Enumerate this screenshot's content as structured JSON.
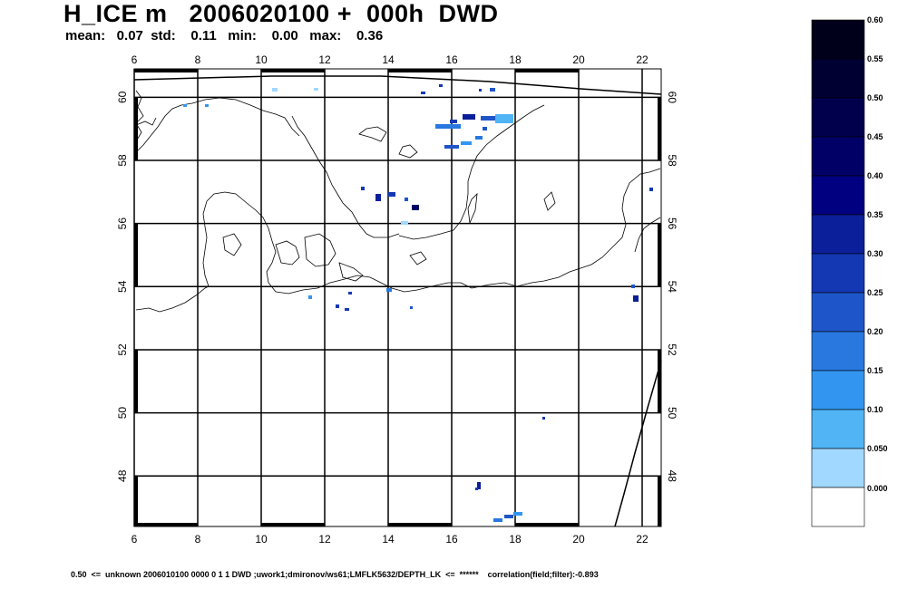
{
  "header": {
    "title": "H_ICE m   2006020100 +  000h  DWD",
    "stats": "mean:   0.07  std:    0.11   min:    0.00   max:    0.36"
  },
  "footer": {
    "text": "0.50  <=  unknown 2006010100 0000 0 1 1 DWD ;uwork1;dmironov/ws61;LMFLK5632/DEPTH_LK  <=  ******    correlation(field;filter):-0.893"
  },
  "map": {
    "lon_range": [
      6,
      22.6
    ],
    "lat_range": [
      46.4,
      60.9
    ],
    "lon_ticks": [
      "6",
      "8",
      "10",
      "12",
      "14",
      "16",
      "18",
      "20",
      "22"
    ],
    "lat_ticks": [
      "48",
      "50",
      "52",
      "54",
      "56",
      "58",
      "60"
    ],
    "grid": true
  },
  "colorbar": {
    "labels": [
      "0.60",
      "0.55",
      "0.50",
      "0.45",
      "0.40",
      "0.35",
      "0.30",
      "0.25",
      "0.20",
      "0.15",
      "0.10",
      "0.050",
      "0.000"
    ],
    "colors": [
      "#00001a",
      "#000033",
      "#00004d",
      "#000066",
      "#000080",
      "#0a1f99",
      "#1438b3",
      "#1e55c8",
      "#2878e0",
      "#3296f0",
      "#50b4f5",
      "#a0d8ff",
      "#ffffff"
    ]
  }
}
